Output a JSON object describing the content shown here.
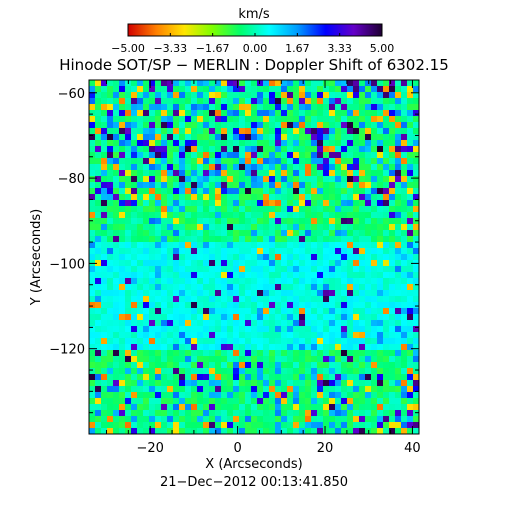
{
  "colorbar": {
    "unit": "km/s",
    "tick_labels": [
      "−5.00",
      "−3.33",
      "−1.67",
      "0.00",
      "1.67",
      "3.33",
      "5.00"
    ],
    "range": [
      -5.0,
      5.0
    ],
    "colormap": [
      "#d20000",
      "#ff7f00",
      "#ffe600",
      "#7dff00",
      "#00ff6e",
      "#00ffff",
      "#009bff",
      "#0000ff",
      "#6400c8",
      "#1e0032"
    ]
  },
  "title": "Hinode SOT/SP − MERLIN : Doppler Shift of 6302.15",
  "x_axis": {
    "label": "X (Arcseconds)",
    "ticks": [
      {
        "value": -20,
        "label": "−20"
      },
      {
        "value": 0,
        "label": "0"
      },
      {
        "value": 20,
        "label": "20"
      },
      {
        "value": 40,
        "label": "40"
      }
    ],
    "range": [
      -34,
      41.5
    ]
  },
  "y_axis": {
    "label": "Y (Arcseconds)",
    "ticks": [
      {
        "value": -60,
        "label": "−60"
      },
      {
        "value": -80,
        "label": "−80"
      },
      {
        "value": -100,
        "label": "−100"
      },
      {
        "value": -120,
        "label": "−120"
      }
    ],
    "range": [
      -140,
      -57
    ]
  },
  "timestamp": "21−Dec−2012 00:13:41.850"
}
